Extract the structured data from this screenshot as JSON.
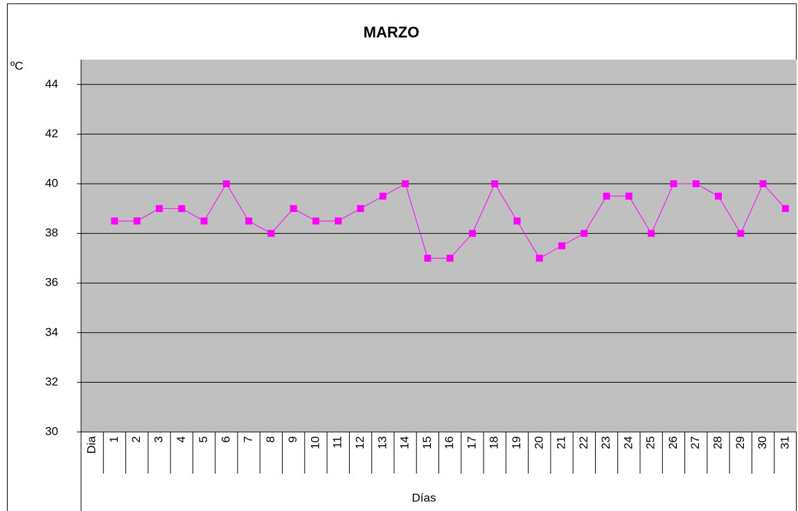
{
  "chart_data": {
    "type": "line",
    "title": "MARZO",
    "y_label": "ºC",
    "x_label": "Días",
    "categories": [
      "Dia",
      "1",
      "2",
      "3",
      "4",
      "5",
      "6",
      "7",
      "8",
      "9",
      "10",
      "11",
      "12",
      "13",
      "14",
      "15",
      "16",
      "17",
      "18",
      "19",
      "20",
      "21",
      "22",
      "23",
      "24",
      "25",
      "26",
      "27",
      "28",
      "29",
      "30",
      "31"
    ],
    "series": [
      {
        "name": "MARZO",
        "color": "#ff00ff",
        "values": [
          null,
          38.5,
          38.5,
          39,
          39,
          38.5,
          40,
          38.5,
          38,
          39,
          38.5,
          38.5,
          39,
          39.5,
          40,
          37,
          37,
          38,
          40,
          38.5,
          37,
          37.5,
          38,
          39.5,
          39.5,
          38,
          40,
          40,
          39.5,
          38,
          40,
          39
        ]
      }
    ],
    "ylim": [
      30,
      45
    ],
    "yticks": [
      30,
      32,
      34,
      36,
      38,
      40,
      42,
      44
    ],
    "grid": true,
    "plot_background": "#c0c0c0"
  }
}
